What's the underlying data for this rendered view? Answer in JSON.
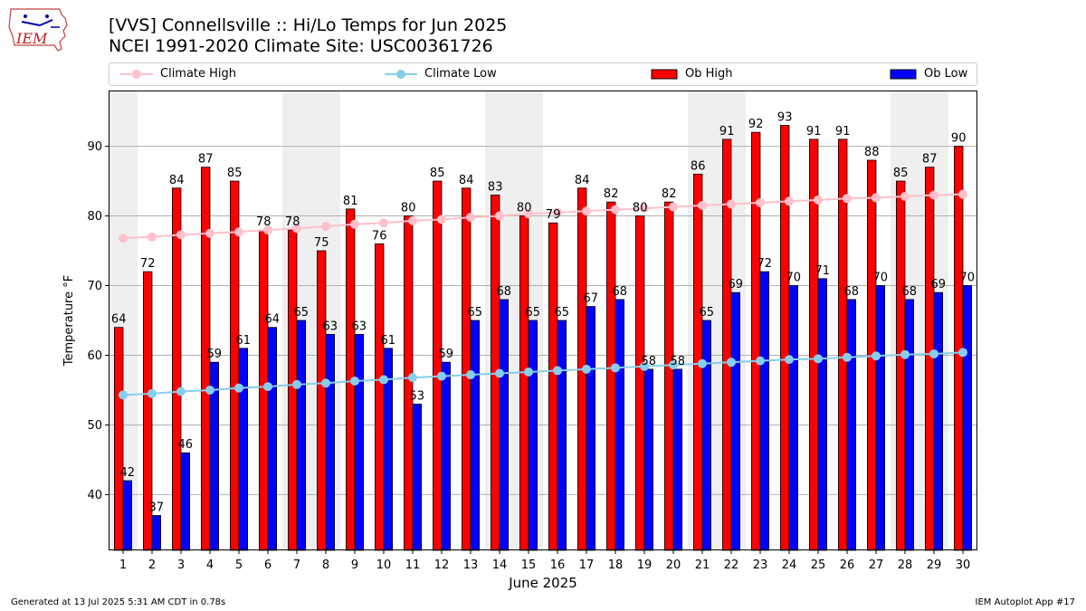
{
  "header": {
    "title_line1": "[VVS] Connellsville :: Hi/Lo Temps for Jun 2025",
    "title_line2": "NCEI 1991-2020 Climate Site: USC00361726"
  },
  "logo": {
    "text": "IEM",
    "icon": "iowa-state-outline-logo"
  },
  "legend": {
    "items": [
      {
        "label": "Climate High",
        "color": "#ffc0cb",
        "kind": "line"
      },
      {
        "label": "Climate Low",
        "color": "#87ceeb",
        "kind": "line"
      },
      {
        "label": "Ob High",
        "color": "#ff0000",
        "kind": "bar"
      },
      {
        "label": "Ob Low",
        "color": "#0000ff",
        "kind": "bar"
      }
    ]
  },
  "footer": {
    "left": "Generated at 13 Jul 2025 5:31 AM CDT in 0.78s",
    "right": "IEM Autoplot App #17"
  },
  "chart_data": {
    "type": "bar",
    "title": "[VVS] Connellsville :: Hi/Lo Temps for Jun 2025",
    "xlabel": "June 2025",
    "ylabel": "Temperature °F",
    "categories": [
      1,
      2,
      3,
      4,
      5,
      6,
      7,
      8,
      9,
      10,
      11,
      12,
      13,
      14,
      15,
      16,
      17,
      18,
      19,
      20,
      21,
      22,
      23,
      24,
      25,
      26,
      27,
      28,
      29,
      30
    ],
    "ylim": [
      32,
      98
    ],
    "yticks": [
      40,
      50,
      60,
      70,
      80,
      90
    ],
    "grid": true,
    "legend_position": "top",
    "weekend_shading": [
      [
        1,
        1
      ],
      [
        7,
        8
      ],
      [
        14,
        15
      ],
      [
        21,
        22
      ],
      [
        28,
        29
      ]
    ],
    "series": [
      {
        "name": "Ob High",
        "type": "bar",
        "color": "#ff0000",
        "values": [
          64,
          72,
          84,
          87,
          85,
          78,
          78,
          75,
          81,
          76,
          80,
          85,
          84,
          83,
          80,
          79,
          84,
          82,
          80,
          82,
          86,
          91,
          92,
          93,
          91,
          91,
          88,
          85,
          87,
          90
        ],
        "labels": [
          "64",
          "72",
          "84",
          "87",
          "85",
          "78",
          "78",
          "75",
          "81",
          "76",
          "80",
          "85",
          "84",
          "83",
          "80",
          "79",
          "84",
          "82",
          "80",
          "82",
          "86",
          "91",
          "92",
          "93",
          "91",
          "91",
          "88",
          "85",
          "87",
          "90"
        ]
      },
      {
        "name": "Ob Low",
        "type": "bar",
        "color": "#0000ff",
        "values": [
          42,
          37,
          46,
          59,
          61,
          64,
          65,
          63,
          63,
          61,
          53,
          59,
          65,
          68,
          65,
          65,
          67,
          68,
          58,
          58,
          65,
          69,
          72,
          70,
          71,
          68,
          70,
          68,
          69,
          70
        ],
        "labels": [
          "42",
          "37",
          "46",
          "59",
          "61",
          "64",
          "65",
          "63",
          "63",
          "61",
          "53",
          "59",
          "65",
          "68",
          "65",
          "65",
          "67",
          "68",
          "58",
          "58",
          "65",
          "69",
          "72",
          "70",
          "71",
          "68",
          "70",
          "68",
          "69",
          "70"
        ]
      },
      {
        "name": "Climate High",
        "type": "line",
        "color": "#ffc0cb",
        "values": [
          76.8,
          77.0,
          77.3,
          77.5,
          77.7,
          78.0,
          78.2,
          78.5,
          78.8,
          79.0,
          79.3,
          79.5,
          79.8,
          80.0,
          80.3,
          80.5,
          80.7,
          80.9,
          81.1,
          81.3,
          81.5,
          81.7,
          81.9,
          82.1,
          82.3,
          82.5,
          82.6,
          82.8,
          83.0,
          83.1
        ]
      },
      {
        "name": "Climate Low",
        "type": "line",
        "color": "#87ceeb",
        "values": [
          54.3,
          54.5,
          54.8,
          55.0,
          55.3,
          55.5,
          55.8,
          56.0,
          56.3,
          56.5,
          56.8,
          57.0,
          57.2,
          57.4,
          57.6,
          57.8,
          58.0,
          58.2,
          58.4,
          58.6,
          58.8,
          59.0,
          59.2,
          59.4,
          59.5,
          59.7,
          59.9,
          60.1,
          60.2,
          60.4
        ]
      }
    ]
  }
}
